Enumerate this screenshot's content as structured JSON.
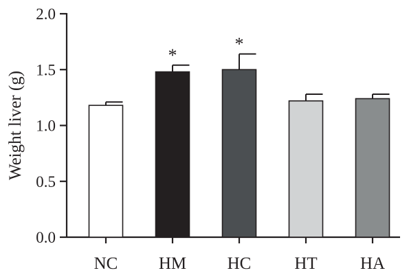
{
  "chart_data": {
    "type": "bar",
    "title": "",
    "xlabel": "",
    "ylabel": "Weight liver (g)",
    "ylim": [
      0,
      2.0
    ],
    "yticks": [
      0.0,
      0.5,
      1.0,
      1.5,
      2.0
    ],
    "ytick_labels": [
      "0.0",
      "0.5",
      "1.0",
      "1.5",
      "2.0"
    ],
    "categories": [
      "NC",
      "HM",
      "HC",
      "HT",
      "HA"
    ],
    "values": [
      1.18,
      1.48,
      1.5,
      1.22,
      1.24
    ],
    "errors": [
      0.03,
      0.06,
      0.14,
      0.06,
      0.04
    ],
    "colors": [
      "#ffffff",
      "#231f20",
      "#4b4f52",
      "#d1d3d4",
      "#898d8e"
    ],
    "annotations": [
      "",
      "*",
      "*",
      "",
      ""
    ],
    "grid": false,
    "legend": "none"
  }
}
